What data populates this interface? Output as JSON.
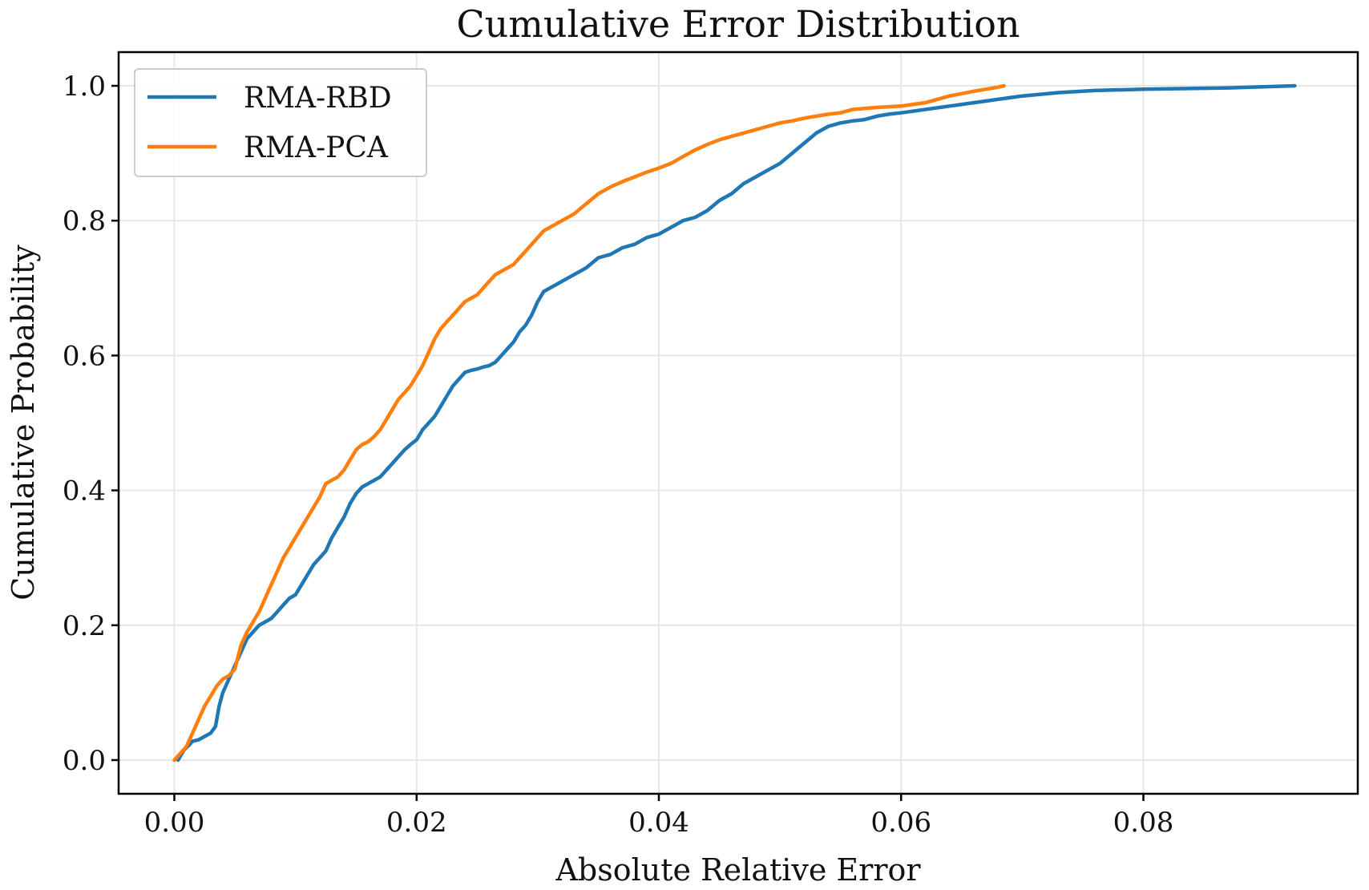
{
  "chart_data": {
    "type": "line",
    "title": "Cumulative Error Distribution",
    "xlabel": "Absolute Relative Error",
    "ylabel": "Cumulative Probability",
    "xlim": [
      -0.0046,
      0.0977
    ],
    "ylim": [
      -0.05,
      1.05
    ],
    "xticks": [
      0.0,
      0.02,
      0.04,
      0.06,
      0.08
    ],
    "xtick_labels": [
      "0.00",
      "0.02",
      "0.04",
      "0.06",
      "0.08"
    ],
    "yticks": [
      0.0,
      0.2,
      0.4,
      0.6,
      0.8,
      1.0
    ],
    "ytick_labels": [
      "0.0",
      "0.2",
      "0.4",
      "0.6",
      "0.8",
      "1.0"
    ],
    "grid": true,
    "legend": "upper-left",
    "series": [
      {
        "name": "RMA-RBD",
        "color": "#1f77b4",
        "x": [
          0.0003,
          0.0008,
          0.0012,
          0.0015,
          0.002,
          0.0025,
          0.003,
          0.0034,
          0.0037,
          0.004,
          0.0045,
          0.005,
          0.0055,
          0.006,
          0.0065,
          0.007,
          0.0075,
          0.008,
          0.0085,
          0.009,
          0.0095,
          0.01,
          0.0105,
          0.011,
          0.0115,
          0.012,
          0.0125,
          0.013,
          0.0135,
          0.014,
          0.0145,
          0.015,
          0.0155,
          0.016,
          0.0165,
          0.017,
          0.0175,
          0.018,
          0.0185,
          0.019,
          0.0195,
          0.02,
          0.0205,
          0.021,
          0.0215,
          0.022,
          0.0225,
          0.023,
          0.0235,
          0.024,
          0.0245,
          0.025,
          0.0255,
          0.026,
          0.0265,
          0.027,
          0.0275,
          0.028,
          0.0285,
          0.029,
          0.0295,
          0.03,
          0.0305,
          0.031,
          0.0315,
          0.032,
          0.0325,
          0.033,
          0.0335,
          0.034,
          0.035,
          0.036,
          0.037,
          0.038,
          0.039,
          0.04,
          0.041,
          0.042,
          0.043,
          0.044,
          0.045,
          0.046,
          0.047,
          0.048,
          0.049,
          0.05,
          0.051,
          0.052,
          0.053,
          0.054,
          0.055,
          0.056,
          0.057,
          0.058,
          0.059,
          0.06,
          0.062,
          0.064,
          0.066,
          0.068,
          0.07,
          0.073,
          0.076,
          0.08,
          0.087,
          0.0925
        ],
        "y": [
          0.0,
          0.015,
          0.022,
          0.028,
          0.03,
          0.035,
          0.04,
          0.05,
          0.08,
          0.1,
          0.12,
          0.14,
          0.16,
          0.18,
          0.19,
          0.2,
          0.205,
          0.21,
          0.22,
          0.23,
          0.24,
          0.245,
          0.26,
          0.275,
          0.29,
          0.3,
          0.31,
          0.33,
          0.345,
          0.36,
          0.38,
          0.395,
          0.405,
          0.41,
          0.415,
          0.42,
          0.43,
          0.44,
          0.45,
          0.46,
          0.468,
          0.475,
          0.49,
          0.5,
          0.51,
          0.525,
          0.54,
          0.555,
          0.565,
          0.575,
          0.578,
          0.58,
          0.583,
          0.585,
          0.59,
          0.6,
          0.61,
          0.62,
          0.635,
          0.645,
          0.66,
          0.68,
          0.695,
          0.7,
          0.705,
          0.71,
          0.715,
          0.72,
          0.725,
          0.73,
          0.745,
          0.75,
          0.76,
          0.765,
          0.775,
          0.78,
          0.79,
          0.8,
          0.805,
          0.815,
          0.83,
          0.84,
          0.855,
          0.865,
          0.875,
          0.885,
          0.9,
          0.915,
          0.93,
          0.94,
          0.945,
          0.948,
          0.95,
          0.955,
          0.958,
          0.96,
          0.965,
          0.97,
          0.975,
          0.98,
          0.985,
          0.99,
          0.993,
          0.995,
          0.997,
          1.0
        ]
      },
      {
        "name": "RMA-PCA",
        "color": "#ff7f0e",
        "x": [
          0.0,
          0.0005,
          0.001,
          0.0015,
          0.002,
          0.0025,
          0.003,
          0.0035,
          0.004,
          0.0045,
          0.005,
          0.0055,
          0.006,
          0.0065,
          0.007,
          0.0075,
          0.008,
          0.0085,
          0.009,
          0.0095,
          0.01,
          0.0105,
          0.011,
          0.0115,
          0.012,
          0.0125,
          0.013,
          0.0135,
          0.014,
          0.0145,
          0.015,
          0.0155,
          0.016,
          0.0165,
          0.017,
          0.0175,
          0.018,
          0.0185,
          0.019,
          0.0195,
          0.02,
          0.0205,
          0.021,
          0.0215,
          0.022,
          0.0225,
          0.023,
          0.0235,
          0.024,
          0.0245,
          0.025,
          0.0255,
          0.026,
          0.0265,
          0.027,
          0.0275,
          0.028,
          0.0285,
          0.029,
          0.0295,
          0.03,
          0.0305,
          0.031,
          0.0315,
          0.032,
          0.033,
          0.034,
          0.035,
          0.036,
          0.037,
          0.038,
          0.039,
          0.04,
          0.041,
          0.042,
          0.043,
          0.044,
          0.045,
          0.046,
          0.047,
          0.048,
          0.049,
          0.05,
          0.051,
          0.052,
          0.053,
          0.054,
          0.055,
          0.056,
          0.058,
          0.06,
          0.062,
          0.064,
          0.066,
          0.068,
          0.0685
        ],
        "y": [
          0.0,
          0.01,
          0.02,
          0.04,
          0.06,
          0.08,
          0.095,
          0.11,
          0.12,
          0.125,
          0.135,
          0.17,
          0.19,
          0.205,
          0.22,
          0.24,
          0.26,
          0.28,
          0.3,
          0.315,
          0.33,
          0.345,
          0.36,
          0.375,
          0.39,
          0.41,
          0.415,
          0.42,
          0.43,
          0.445,
          0.46,
          0.468,
          0.472,
          0.48,
          0.49,
          0.505,
          0.52,
          0.535,
          0.545,
          0.555,
          0.57,
          0.585,
          0.605,
          0.625,
          0.64,
          0.65,
          0.66,
          0.67,
          0.68,
          0.685,
          0.69,
          0.7,
          0.71,
          0.72,
          0.725,
          0.73,
          0.735,
          0.745,
          0.755,
          0.765,
          0.775,
          0.785,
          0.79,
          0.795,
          0.8,
          0.81,
          0.825,
          0.84,
          0.85,
          0.858,
          0.865,
          0.872,
          0.878,
          0.885,
          0.895,
          0.905,
          0.913,
          0.92,
          0.925,
          0.93,
          0.935,
          0.94,
          0.945,
          0.948,
          0.952,
          0.955,
          0.958,
          0.96,
          0.965,
          0.968,
          0.97,
          0.975,
          0.985,
          0.992,
          0.998,
          1.0
        ]
      }
    ]
  }
}
